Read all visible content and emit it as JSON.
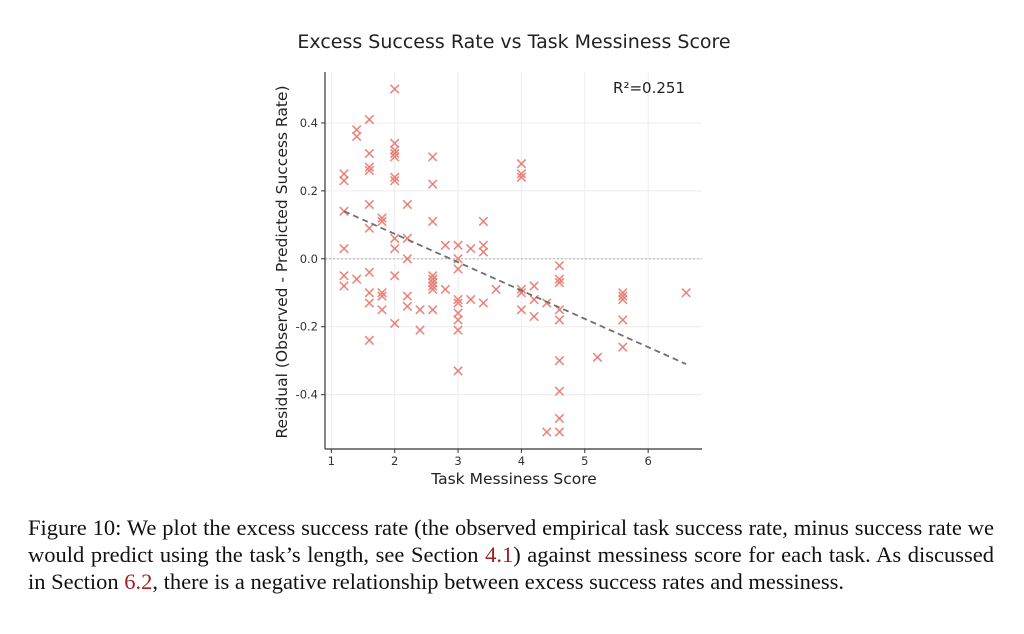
{
  "chart_data": {
    "type": "scatter",
    "title": "Excess Success Rate vs Task Messiness Score",
    "xlabel": "Task Messiness Score",
    "ylabel": "Residual (Observed - Predicted Success Rate)",
    "xlim": [
      0.9,
      6.85
    ],
    "ylim": [
      -0.56,
      0.55
    ],
    "xticks": [
      "1",
      "2",
      "3",
      "4",
      "5",
      "6"
    ],
    "yticks": [
      "0.4",
      "0.2",
      "0.0",
      "-0.2",
      "-0.4"
    ],
    "annotation": "R²=0.251",
    "grid": true,
    "zero_line": true,
    "marker": "x",
    "marker_color": "#e87b72",
    "trend_color": "#707070",
    "trendline": {
      "x": [
        1.2,
        6.6
      ],
      "y": [
        0.14,
        -0.31
      ]
    },
    "points": [
      [
        2.0,
        0.5
      ],
      [
        1.4,
        0.38
      ],
      [
        1.4,
        0.36
      ],
      [
        1.6,
        0.41
      ],
      [
        1.6,
        0.31
      ],
      [
        1.6,
        0.27
      ],
      [
        1.6,
        0.26
      ],
      [
        2.0,
        0.34
      ],
      [
        2.0,
        0.32
      ],
      [
        2.0,
        0.31
      ],
      [
        2.0,
        0.3
      ],
      [
        2.6,
        0.3
      ],
      [
        2.0,
        0.24
      ],
      [
        2.0,
        0.23
      ],
      [
        1.2,
        0.25
      ],
      [
        1.2,
        0.23
      ],
      [
        2.6,
        0.22
      ],
      [
        4.0,
        0.28
      ],
      [
        4.0,
        0.25
      ],
      [
        4.0,
        0.24
      ],
      [
        1.2,
        0.14
      ],
      [
        1.6,
        0.16
      ],
      [
        1.8,
        0.12
      ],
      [
        1.8,
        0.11
      ],
      [
        2.2,
        0.16
      ],
      [
        1.6,
        0.09
      ],
      [
        2.6,
        0.11
      ],
      [
        3.4,
        0.11
      ],
      [
        2.0,
        0.06
      ],
      [
        2.2,
        0.06
      ],
      [
        2.0,
        0.03
      ],
      [
        1.2,
        0.03
      ],
      [
        2.8,
        0.04
      ],
      [
        3.0,
        0.04
      ],
      [
        3.2,
        0.03
      ],
      [
        3.4,
        0.04
      ],
      [
        3.4,
        0.02
      ],
      [
        3.0,
        0.0
      ],
      [
        2.2,
        0.0
      ],
      [
        3.0,
        -0.03
      ],
      [
        4.6,
        -0.02
      ],
      [
        1.2,
        -0.05
      ],
      [
        1.4,
        -0.06
      ],
      [
        1.6,
        -0.04
      ],
      [
        1.2,
        -0.08
      ],
      [
        2.0,
        -0.05
      ],
      [
        2.6,
        -0.05
      ],
      [
        2.6,
        -0.06
      ],
      [
        2.6,
        -0.07
      ],
      [
        2.6,
        -0.08
      ],
      [
        2.6,
        -0.09
      ],
      [
        2.8,
        -0.09
      ],
      [
        3.6,
        -0.09
      ],
      [
        4.0,
        -0.09
      ],
      [
        4.2,
        -0.08
      ],
      [
        4.6,
        -0.06
      ],
      [
        4.6,
        -0.07
      ],
      [
        6.6,
        -0.1
      ],
      [
        5.6,
        -0.1
      ],
      [
        5.6,
        -0.11
      ],
      [
        5.6,
        -0.12
      ],
      [
        1.6,
        -0.1
      ],
      [
        1.6,
        -0.13
      ],
      [
        1.8,
        -0.1
      ],
      [
        1.8,
        -0.11
      ],
      [
        1.8,
        -0.15
      ],
      [
        2.2,
        -0.11
      ],
      [
        2.2,
        -0.14
      ],
      [
        2.4,
        -0.15
      ],
      [
        2.6,
        -0.15
      ],
      [
        2.0,
        -0.19
      ],
      [
        2.4,
        -0.21
      ],
      [
        3.0,
        -0.12
      ],
      [
        3.0,
        -0.13
      ],
      [
        3.0,
        -0.16
      ],
      [
        3.0,
        -0.18
      ],
      [
        3.0,
        -0.21
      ],
      [
        3.2,
        -0.12
      ],
      [
        3.4,
        -0.13
      ],
      [
        4.0,
        -0.1
      ],
      [
        4.2,
        -0.12
      ],
      [
        4.4,
        -0.13
      ],
      [
        4.0,
        -0.15
      ],
      [
        4.2,
        -0.17
      ],
      [
        4.6,
        -0.15
      ],
      [
        4.6,
        -0.18
      ],
      [
        5.6,
        -0.18
      ],
      [
        1.6,
        -0.24
      ],
      [
        5.6,
        -0.26
      ],
      [
        5.2,
        -0.29
      ],
      [
        4.6,
        -0.3
      ],
      [
        3.0,
        -0.33
      ],
      [
        4.6,
        -0.39
      ],
      [
        4.6,
        -0.47
      ],
      [
        4.4,
        -0.51
      ],
      [
        4.6,
        -0.51
      ]
    ]
  },
  "caption": {
    "before_ref1": "Figure 10: We plot the excess success rate (the observed empirical task success rate, minus success rate we would predict using the task’s length, see Section ",
    "ref1": "4.1",
    "between": ") against messiness score for each task. As discussed in Section ",
    "ref2": "6.2",
    "after_ref2": ", there is a negative relationship between excess success rates and messiness."
  }
}
